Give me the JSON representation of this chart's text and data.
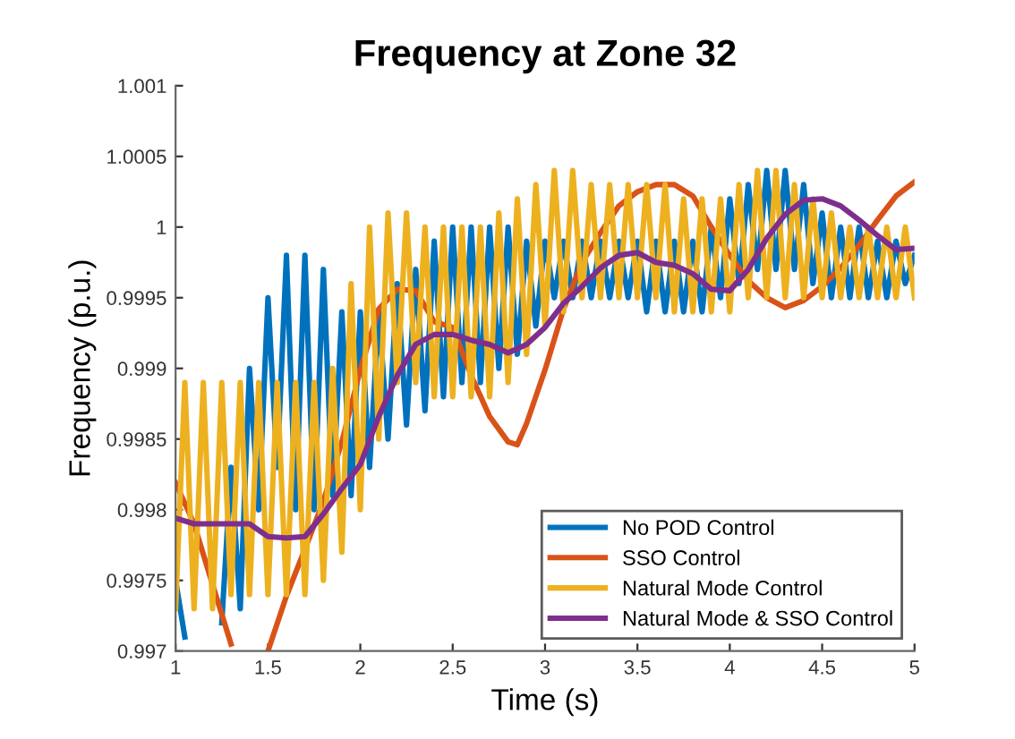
{
  "chart_data": {
    "type": "line",
    "title": "Frequency at Zone 32",
    "xlabel": "Time (s)",
    "ylabel": "Frequency (p.u.)",
    "xlim": [
      1,
      5
    ],
    "ylim": [
      0.997,
      1.001
    ],
    "xticks": [
      1,
      1.5,
      2,
      2.5,
      3,
      3.5,
      4,
      4.5,
      5
    ],
    "yticks": [
      0.997,
      0.9975,
      0.998,
      0.9985,
      0.999,
      0.9995,
      1,
      1.0005,
      1.001
    ],
    "grid": false,
    "legend": "bottom right",
    "line_style": "solid",
    "marker": "none",
    "series": [
      {
        "name": "No POD Control",
        "color": "#0072bd",
        "x": [
          1.0,
          1.05,
          1.1,
          1.15,
          1.2,
          1.25,
          1.3,
          1.35,
          1.4,
          1.45,
          1.5,
          1.55,
          1.6,
          1.65,
          1.7,
          1.75,
          1.8,
          1.85,
          1.9,
          1.95,
          2.0,
          2.05,
          2.1,
          2.15,
          2.2,
          2.25,
          2.3,
          2.35,
          2.4,
          2.45,
          2.5,
          2.55,
          2.6,
          2.65,
          2.7,
          2.75,
          2.8,
          2.85,
          2.9,
          2.95,
          3.0,
          3.05,
          3.1,
          3.15,
          3.2,
          3.25,
          3.3,
          3.35,
          3.4,
          3.45,
          3.5,
          3.55,
          3.6,
          3.65,
          3.7,
          3.75,
          3.8,
          3.85,
          3.9,
          3.95,
          4.0,
          4.05,
          4.1,
          4.15,
          4.2,
          4.25,
          4.3,
          4.35,
          4.4,
          4.45,
          4.5,
          4.55,
          4.6,
          4.65,
          4.7,
          4.75,
          4.8,
          4.85,
          4.9,
          4.95,
          5.0
        ],
        "values": [
          0.9975,
          0.9971,
          null,
          null,
          null,
          0.9972,
          0.9983,
          0.9973,
          0.999,
          0.998,
          0.9995,
          0.9983,
          0.9998,
          0.998,
          0.9998,
          0.998,
          0.9997,
          0.9981,
          0.9994,
          0.9981,
          0.9994,
          0.9983,
          0.9994,
          0.9985,
          0.9996,
          0.9986,
          0.9997,
          0.9987,
          0.9999,
          0.9988,
          1.0,
          0.9989,
          1.0,
          0.9989,
          1.0,
          0.999,
          1.0,
          0.9991,
          0.9999,
          0.9993,
          0.9999,
          0.9995,
          0.9999,
          0.9995,
          0.9999,
          0.9995,
          0.9999,
          0.9995,
          0.9999,
          0.9995,
          0.9999,
          0.9994,
          0.9999,
          0.9994,
          0.9999,
          0.9994,
          0.9999,
          0.9994,
          1.0,
          0.9995,
          1.0002,
          0.9996,
          1.0003,
          0.9997,
          1.0004,
          0.9997,
          1.0004,
          0.9997,
          1.0003,
          0.9996,
          1.0001,
          0.9995,
          1.0,
          0.9995,
          1.0,
          0.9995,
          0.9999,
          0.9995,
          0.9999,
          0.9996,
          0.9998
        ]
      },
      {
        "name": "SSO Control",
        "color": "#d95319",
        "x": [
          1.0,
          1.1,
          1.2,
          1.3,
          1.4,
          1.5,
          1.6,
          1.7,
          1.8,
          1.9,
          2.0,
          2.1,
          2.2,
          2.3,
          2.4,
          2.5,
          2.6,
          2.7,
          2.8,
          2.85,
          2.9,
          3.0,
          3.1,
          3.2,
          3.3,
          3.4,
          3.5,
          3.6,
          3.7,
          3.8,
          3.9,
          4.0,
          4.1,
          4.2,
          4.3,
          4.4,
          4.5,
          4.6,
          4.7,
          4.8,
          4.9,
          5.0
        ],
        "values": [
          0.99819,
          0.9979,
          0.99747,
          0.99705,
          null,
          0.997,
          0.99739,
          0.99772,
          0.99806,
          0.99848,
          0.99899,
          0.99942,
          0.99956,
          0.99955,
          0.99933,
          0.99929,
          0.99895,
          0.99866,
          0.99848,
          0.99846,
          0.99861,
          0.99899,
          0.99942,
          0.99975,
          0.99996,
          1.00015,
          1.00025,
          1.0003,
          1.0003,
          1.00022,
          1.0,
          0.9998,
          0.99962,
          0.9995,
          0.99943,
          0.99948,
          0.99958,
          0.99971,
          0.99987,
          1.00005,
          1.00022,
          1.00032
        ]
      },
      {
        "name": "Natural Mode Control",
        "color": "#edb120",
        "x": [
          1.0,
          1.05,
          1.1,
          1.15,
          1.2,
          1.25,
          1.3,
          1.35,
          1.4,
          1.45,
          1.5,
          1.55,
          1.6,
          1.65,
          1.7,
          1.75,
          1.8,
          1.85,
          1.9,
          1.95,
          2.0,
          2.05,
          2.1,
          2.15,
          2.2,
          2.25,
          2.3,
          2.35,
          2.4,
          2.45,
          2.5,
          2.55,
          2.6,
          2.65,
          2.7,
          2.75,
          2.8,
          2.85,
          2.9,
          2.95,
          3.0,
          3.05,
          3.1,
          3.15,
          3.2,
          3.25,
          3.3,
          3.35,
          3.4,
          3.45,
          3.5,
          3.55,
          3.6,
          3.65,
          3.7,
          3.75,
          3.8,
          3.85,
          3.9,
          3.95,
          4.0,
          4.05,
          4.1,
          4.15,
          4.2,
          4.25,
          4.3,
          4.35,
          4.4,
          4.45,
          4.5,
          4.55,
          4.6,
          4.65,
          4.7,
          4.75,
          4.8,
          4.85,
          4.9,
          4.95,
          5.0
        ],
        "values": [
          0.9973,
          0.9989,
          0.9973,
          0.9989,
          0.9973,
          0.9989,
          0.9974,
          0.9989,
          0.9974,
          0.9989,
          0.9974,
          0.9989,
          0.9974,
          0.9989,
          0.9974,
          0.9989,
          0.9975,
          0.999,
          0.9977,
          0.9996,
          0.998,
          1.0,
          0.9985,
          1.0001,
          0.9989,
          1.0001,
          0.9989,
          1.0,
          0.9988,
          1.0,
          0.9988,
          1.0,
          0.9988,
          1.0,
          0.9988,
          1.0001,
          0.9989,
          1.0002,
          0.9991,
          1.0003,
          0.9993,
          1.0004,
          0.9994,
          1.0004,
          0.9995,
          1.0003,
          0.9995,
          1.0003,
          0.9995,
          1.0003,
          0.9995,
          1.0003,
          0.9995,
          1.0003,
          0.9994,
          1.0002,
          0.9994,
          1.0002,
          0.9994,
          1.0002,
          0.9994,
          1.0003,
          0.9995,
          1.0004,
          0.9995,
          1.0004,
          0.9995,
          1.0003,
          0.9995,
          1.0002,
          0.9995,
          1.0001,
          0.9995,
          1.0,
          0.9995,
          1.0,
          0.9995,
          1.0,
          0.9995,
          1.0,
          0.9995
        ]
      },
      {
        "name": "Natural Mode & SSO Control",
        "color": "#7e2f8e",
        "x": [
          1.0,
          1.1,
          1.2,
          1.3,
          1.4,
          1.5,
          1.6,
          1.7,
          1.8,
          1.9,
          2.0,
          2.1,
          2.2,
          2.3,
          2.4,
          2.5,
          2.6,
          2.7,
          2.8,
          2.9,
          3.0,
          3.1,
          3.2,
          3.3,
          3.4,
          3.5,
          3.6,
          3.7,
          3.8,
          3.9,
          4.0,
          4.1,
          4.2,
          4.3,
          4.4,
          4.5,
          4.6,
          4.7,
          4.8,
          4.9,
          5.0
        ],
        "values": [
          0.99794,
          0.9979,
          0.9979,
          0.9979,
          0.9979,
          0.99781,
          0.9978,
          0.99781,
          0.99797,
          0.99815,
          0.99832,
          0.99866,
          0.99895,
          0.99917,
          0.99924,
          0.99924,
          0.9992,
          0.99917,
          0.99911,
          0.99917,
          0.99929,
          0.99946,
          0.99958,
          0.99971,
          0.9998,
          0.99982,
          0.99975,
          0.99973,
          0.99967,
          0.99956,
          0.99955,
          0.9997,
          0.99992,
          1.00009,
          1.00019,
          1.0002,
          1.00015,
          1.00005,
          0.99994,
          0.99984,
          0.99985
        ]
      }
    ]
  }
}
